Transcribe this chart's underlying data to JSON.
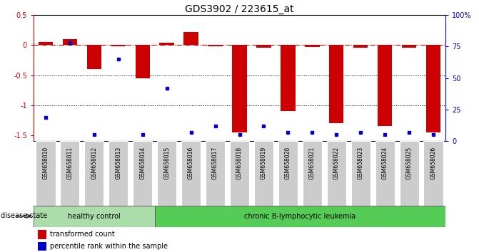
{
  "title": "GDS3902 / 223615_at",
  "samples": [
    "GSM658010",
    "GSM658011",
    "GSM658012",
    "GSM658013",
    "GSM658014",
    "GSM658015",
    "GSM658016",
    "GSM658017",
    "GSM658018",
    "GSM658019",
    "GSM658020",
    "GSM658021",
    "GSM658022",
    "GSM658023",
    "GSM658024",
    "GSM658025",
    "GSM658026"
  ],
  "transformed_count": [
    0.05,
    0.1,
    -0.4,
    -0.02,
    -0.55,
    0.04,
    0.22,
    -0.02,
    -1.45,
    -0.04,
    -1.1,
    -0.03,
    -1.3,
    -0.04,
    -1.35,
    -0.04,
    -1.45
  ],
  "percentile_rank": [
    19,
    78,
    5,
    65,
    5,
    42,
    7,
    12,
    5,
    12,
    7,
    7,
    5,
    7,
    5,
    7,
    5
  ],
  "healthy_count": 5,
  "total_count": 17,
  "bar_color": "#CC0000",
  "dot_color": "#0000CC",
  "ylim_left": [
    -1.6,
    0.5
  ],
  "ylim_right": [
    0,
    100
  ],
  "yticks_left": [
    -1.5,
    -1.0,
    -0.5,
    0.0,
    0.5
  ],
  "yticks_right": [
    0,
    25,
    50,
    75,
    100
  ],
  "dotted_lines": [
    -0.5,
    -1.0
  ],
  "healthy_label": "healthy control",
  "disease_label": "chronic B-lymphocytic leukemia",
  "disease_state_label": "disease state",
  "legend_bar_label": "transformed count",
  "legend_dot_label": "percentile rank within the sample",
  "healthy_color": "#AADDAA",
  "disease_color": "#55CC55",
  "label_area_color": "#CCCCCC",
  "background_color": "#FFFFFF"
}
